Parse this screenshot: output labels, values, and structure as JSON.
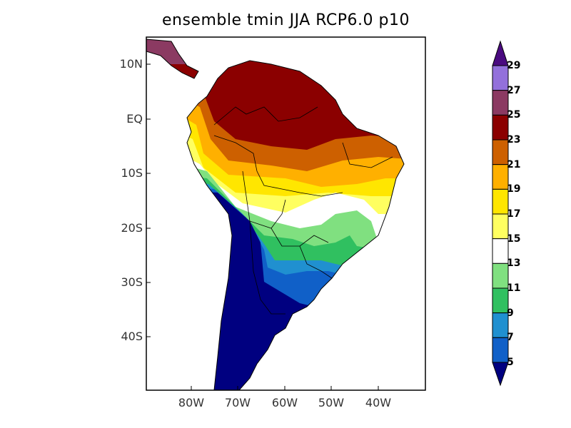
{
  "title": "ensemble tmin JJA RCP6.0 p10",
  "y_axis_labels": [
    "10N",
    "EQ",
    "10S",
    "20S",
    "30S",
    "40S"
  ],
  "x_axis_labels": [
    "80W",
    "70W",
    "60W",
    "50W",
    "40W"
  ],
  "colorbar": {
    "labels": [
      "29",
      "27",
      "25",
      "23",
      "21",
      "19",
      "17",
      "15",
      "13",
      "11",
      "9",
      "7",
      "5"
    ],
    "colors_top_to_bottom": [
      "#4a0a80",
      "#9370db",
      "#8b3a62",
      "#8b0000",
      "#cd6000",
      "#ffb000",
      "#ffe600",
      "#ffff60",
      "#ffffff",
      "#80e080",
      "#30c060",
      "#2090d0",
      "#1060c8",
      "#000080"
    ]
  }
}
